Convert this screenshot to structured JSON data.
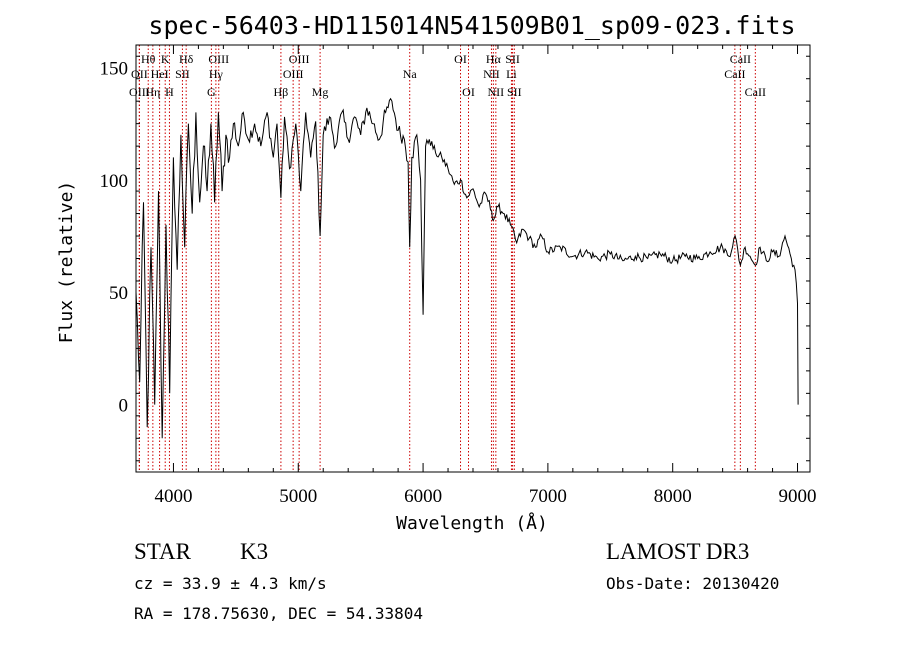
{
  "chart_data": {
    "type": "line",
    "title": "spec-56403-HD115014N541509B01_sp09-023.fits",
    "xlabel": "Wavelength (Å)",
    "ylabel": "Flux (relative)",
    "xlim": [
      3700,
      9100
    ],
    "ylim": [
      -30,
      160
    ],
    "xticks": [
      4000,
      5000,
      6000,
      7000,
      8000,
      9000
    ],
    "yticks": [
      0,
      50,
      100,
      150
    ],
    "series": [
      {
        "name": "flux",
        "x": [
          3700,
          3730,
          3760,
          3790,
          3820,
          3850,
          3880,
          3910,
          3940,
          3970,
          4000,
          4030,
          4060,
          4090,
          4120,
          4150,
          4180,
          4210,
          4240,
          4270,
          4300,
          4330,
          4360,
          4390,
          4420,
          4450,
          4480,
          4520,
          4560,
          4600,
          4650,
          4700,
          4750,
          4800,
          4830,
          4861,
          4890,
          4930,
          4980,
          5020,
          5060,
          5100,
          5140,
          5175,
          5200,
          5250,
          5300,
          5350,
          5400,
          5450,
          5500,
          5550,
          5600,
          5650,
          5700,
          5750,
          5800,
          5850,
          5880,
          5893,
          5910,
          5950,
          5980,
          6000,
          6020,
          6050,
          6100,
          6150,
          6200,
          6250,
          6300,
          6350,
          6400,
          6450,
          6500,
          6550,
          6563,
          6600,
          6650,
          6700,
          6750,
          6800,
          6850,
          6900,
          6950,
          7000,
          7100,
          7200,
          7300,
          7400,
          7500,
          7600,
          7700,
          7800,
          7900,
          8000,
          8100,
          8200,
          8300,
          8400,
          8450,
          8500,
          8542,
          8580,
          8620,
          8662,
          8700,
          8750,
          8800,
          8850,
          8900,
          8950,
          8980,
          9000,
          9005
        ],
        "values": [
          50,
          10,
          90,
          -10,
          70,
          0,
          95,
          -15,
          80,
          5,
          110,
          60,
          120,
          70,
          125,
          85,
          130,
          90,
          115,
          95,
          125,
          90,
          130,
          95,
          120,
          110,
          125,
          115,
          130,
          118,
          125,
          115,
          130,
          110,
          125,
          92,
          128,
          105,
          125,
          95,
          130,
          110,
          126,
          75,
          120,
          128,
          115,
          130,
          118,
          128,
          120,
          132,
          125,
          118,
          130,
          135,
          122,
          118,
          108,
          70,
          110,
          120,
          100,
          40,
          115,
          118,
          112,
          110,
          105,
          98,
          100,
          92,
          96,
          88,
          94,
          86,
          82,
          88,
          85,
          80,
          72,
          78,
          74,
          70,
          75,
          68,
          70,
          66,
          68,
          65,
          67,
          64,
          66,
          65,
          67,
          64,
          66,
          65,
          68,
          70,
          66,
          75,
          62,
          70,
          66,
          62,
          70,
          64,
          68,
          66,
          75,
          65,
          60,
          45,
          0
        ]
      }
    ],
    "lines": [
      {
        "name": "Hθ",
        "wl": 3798,
        "row": 1
      },
      {
        "name": "OII",
        "wl": 3727,
        "row": 2
      },
      {
        "name": "OIII",
        "wl": 3727,
        "row": 3
      },
      {
        "name": "Hη",
        "wl": 3835,
        "row": 3
      },
      {
        "name": "K",
        "wl": 3934,
        "row": 1
      },
      {
        "name": "HeI",
        "wl": 3889,
        "row": 2
      },
      {
        "name": "H",
        "wl": 3968,
        "row": 3
      },
      {
        "name": "Hδ",
        "wl": 4102,
        "row": 1
      },
      {
        "name": "SII",
        "wl": 4072,
        "row": 2
      },
      {
        "name": "OIII",
        "wl": 4363,
        "row": 1
      },
      {
        "name": "Hγ",
        "wl": 4340,
        "row": 2
      },
      {
        "name": "G",
        "wl": 4304,
        "row": 3
      },
      {
        "name": "OIII",
        "wl": 5007,
        "row": 1
      },
      {
        "name": "OIII",
        "wl": 4959,
        "row": 2
      },
      {
        "name": "Hβ",
        "wl": 4861,
        "row": 3
      },
      {
        "name": "Mg",
        "wl": 5175,
        "row": 3
      },
      {
        "name": "Na",
        "wl": 5893,
        "row": 2
      },
      {
        "name": "OI",
        "wl": 6300,
        "row": 1
      },
      {
        "name": "OI",
        "wl": 6364,
        "row": 3
      },
      {
        "name": "Hα",
        "wl": 6563,
        "row": 1
      },
      {
        "name": "SII",
        "wl": 6717,
        "row": 1
      },
      {
        "name": "NII",
        "wl": 6548,
        "row": 2
      },
      {
        "name": "Li",
        "wl": 6708,
        "row": 2
      },
      {
        "name": "NII",
        "wl": 6583,
        "row": 3
      },
      {
        "name": "SII",
        "wl": 6731,
        "row": 3
      },
      {
        "name": "CaII",
        "wl": 8542,
        "row": 1
      },
      {
        "name": "CaII",
        "wl": 8498,
        "row": 2
      },
      {
        "name": "CaII",
        "wl": 8662,
        "row": 3
      }
    ],
    "line_color": "#cc0000"
  },
  "info": {
    "class_label": "STAR",
    "subclass": "K3",
    "survey": "LAMOST DR3",
    "cz": "cz = 33.9 ± 4.3 km/s",
    "obs_date": "Obs-Date: 20130420",
    "coords": "RA = 178.75630, DEC =  54.33804"
  }
}
